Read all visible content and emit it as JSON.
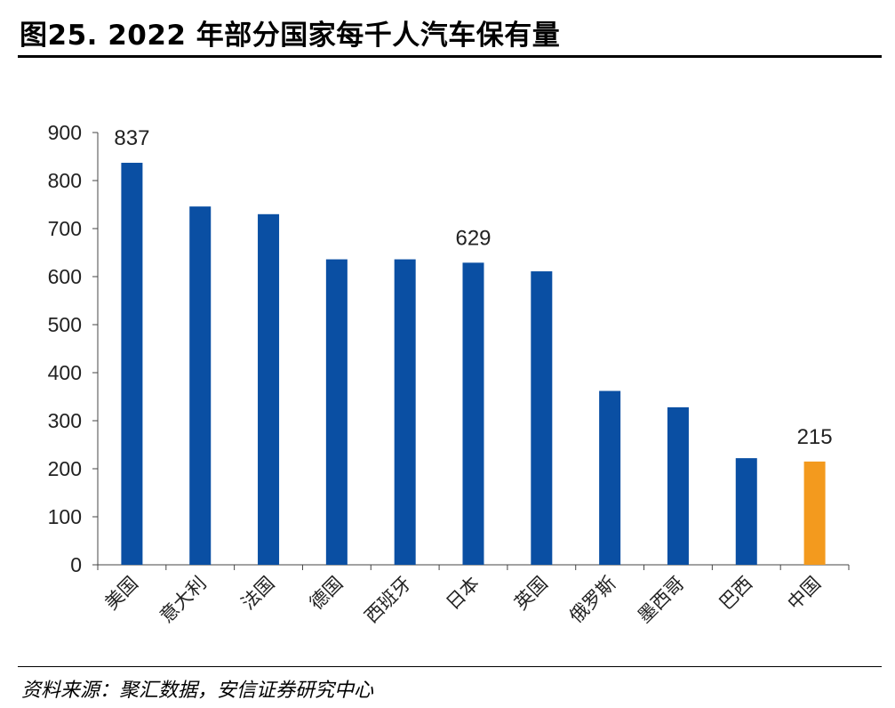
{
  "header": {
    "title": "图25. 2022 年部分国家每千人汽车保有量"
  },
  "footer": {
    "source": "资料来源：聚汇数据，安信证券研究中心"
  },
  "chart_data": {
    "type": "bar",
    "title": "图25. 2022 年部分国家每千人汽车保有量",
    "xlabel": "",
    "ylabel": "",
    "ylim": [
      0,
      900
    ],
    "yticks": [
      0,
      100,
      200,
      300,
      400,
      500,
      600,
      700,
      800,
      900
    ],
    "categories": [
      "美国",
      "意大利",
      "法国",
      "德国",
      "西班牙",
      "日本",
      "英国",
      "俄罗斯",
      "墨西哥",
      "巴西",
      "中国"
    ],
    "values": [
      837,
      746,
      730,
      636,
      636,
      629,
      611,
      362,
      328,
      222,
      215
    ],
    "data_labels": {
      "美国": "837",
      "日本": "629",
      "中国": "215"
    },
    "colors": {
      "default": "#0a4fa3",
      "highlight": "#f39a1e",
      "highlight_category": "中国"
    },
    "grid": false,
    "legend": "none"
  }
}
